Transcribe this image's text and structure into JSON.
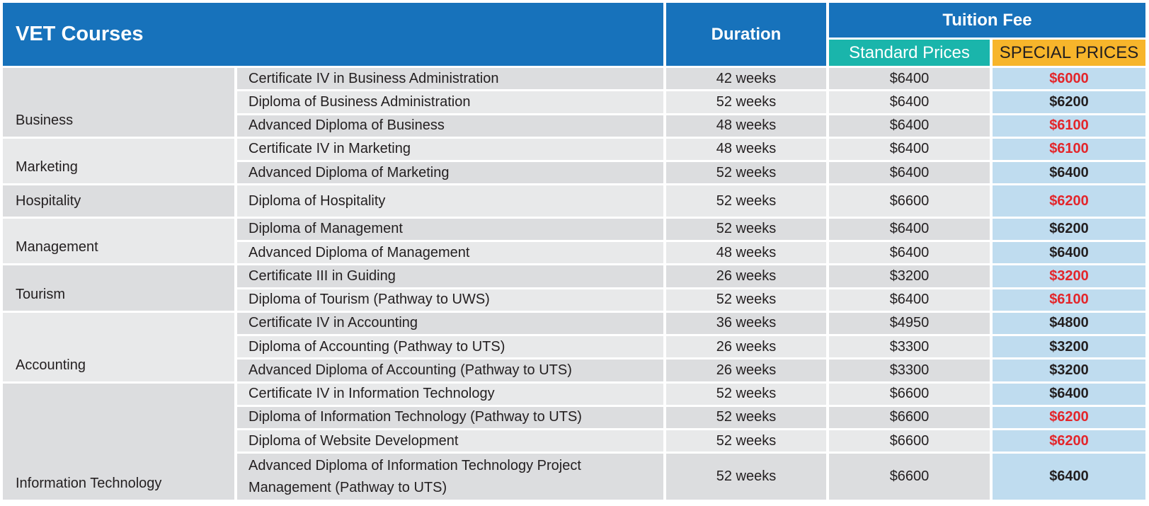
{
  "header": {
    "title": "VET Courses",
    "duration": "Duration",
    "tuition_fee": "Tuition Fee",
    "standard_prices": "Standard Prices",
    "special_prices": "SPECIAL PRICES"
  },
  "colors": {
    "header_blue": "#1772bb",
    "standard_teal": "#1ab5ab",
    "special_orange": "#f7b52b",
    "special_cell_blue": "#bfdcef",
    "special_red": "#e3262b"
  },
  "areas": [
    {
      "name": "Business",
      "courses": [
        {
          "title": "Certificate IV in Business Administration",
          "duration": "42 weeks",
          "standard": "$6400",
          "special": "$6000",
          "special_color": "red"
        },
        {
          "title": "Diploma of Business Administration",
          "duration": "52 weeks",
          "standard": "$6400",
          "special": "$6200",
          "special_color": "dark"
        },
        {
          "title": "Advanced Diploma of Business",
          "duration": "48 weeks",
          "standard": "$6400",
          "special": "$6100",
          "special_color": "red"
        }
      ]
    },
    {
      "name": "Marketing",
      "courses": [
        {
          "title": "Certificate IV in Marketing",
          "duration": "48 weeks",
          "standard": "$6400",
          "special": "$6100",
          "special_color": "red"
        },
        {
          "title": "Advanced Diploma of Marketing",
          "duration": "52 weeks",
          "standard": "$6400",
          "special": "$6400",
          "special_color": "dark"
        }
      ]
    },
    {
      "name": "Hospitality",
      "courses": [
        {
          "title": "Diploma of Hospitality",
          "duration": "52 weeks",
          "standard": "$6600",
          "special": "$6200",
          "special_color": "red"
        }
      ]
    },
    {
      "name": "Management",
      "courses": [
        {
          "title": "Diploma of Management",
          "duration": "52 weeks",
          "standard": "$6400",
          "special": "$6200",
          "special_color": "dark"
        },
        {
          "title": "Advanced Diploma of Management",
          "duration": "48 weeks",
          "standard": "$6400",
          "special": "$6400",
          "special_color": "dark"
        }
      ]
    },
    {
      "name": "Tourism",
      "courses": [
        {
          "title": "Certificate III in Guiding",
          "duration": "26 weeks",
          "standard": "$3200",
          "special": "$3200",
          "special_color": "red"
        },
        {
          "title": "Diploma of Tourism (Pathway to UWS)",
          "duration": "52 weeks",
          "standard": "$6400",
          "special": "$6100",
          "special_color": "red"
        }
      ]
    },
    {
      "name": "Accounting",
      "courses": [
        {
          "title": "Certificate IV in Accounting",
          "duration": "36 weeks",
          "standard": "$4950",
          "special": "$4800",
          "special_color": "dark"
        },
        {
          "title": "Diploma of Accounting (Pathway to UTS)",
          "duration": "26 weeks",
          "standard": "$3300",
          "special": "$3200",
          "special_color": "dark"
        },
        {
          "title": "Advanced Diploma of Accounting (Pathway to UTS)",
          "duration": "26 weeks",
          "standard": "$3300",
          "special": "$3200",
          "special_color": "dark"
        }
      ]
    },
    {
      "name": "Information Technology",
      "courses": [
        {
          "title": "Certificate IV in Information Technology",
          "duration": "52 weeks",
          "standard": "$6600",
          "special": "$6400",
          "special_color": "dark"
        },
        {
          "title": "Diploma of Information Technology (Pathway to UTS)",
          "duration": "52 weeks",
          "standard": "$6600",
          "special": "$6200",
          "special_color": "red"
        },
        {
          "title": "Diploma of Website Development",
          "duration": "52 weeks",
          "standard": "$6600",
          "special": "$6200",
          "special_color": "red"
        },
        {
          "title": "Advanced Diploma of Information Technology Project Management (Pathway to UTS)",
          "duration": "52 weeks",
          "standard": "$6600",
          "special": "$6400",
          "special_color": "dark"
        }
      ]
    }
  ]
}
